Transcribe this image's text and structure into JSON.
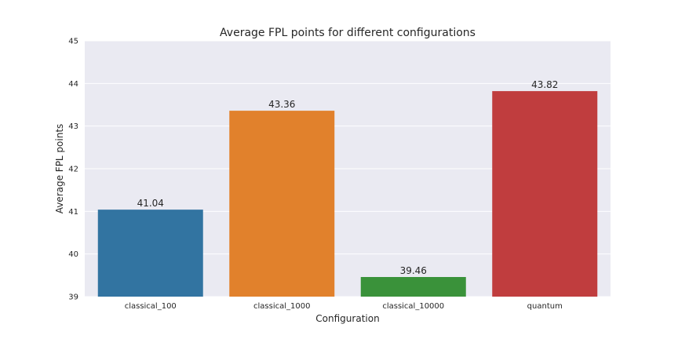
{
  "chart_data": {
    "type": "bar",
    "title": "Average FPL points for different configurations",
    "xlabel": "Configuration",
    "ylabel": "Average FPL points",
    "categories": [
      "classical_100",
      "classical_1000",
      "classical_10000",
      "quantum"
    ],
    "values": [
      41.04,
      43.36,
      39.46,
      43.82
    ],
    "data_labels": [
      "41.04",
      "43.36",
      "39.46",
      "43.82"
    ],
    "colors": [
      "#3274a1",
      "#e1812c",
      "#3a923a",
      "#c03d3e"
    ],
    "ylim": [
      39,
      45
    ],
    "yticks": [
      "39",
      "40",
      "41",
      "42",
      "43",
      "44",
      "45"
    ],
    "grid": true,
    "background": "#eaeaf2"
  }
}
